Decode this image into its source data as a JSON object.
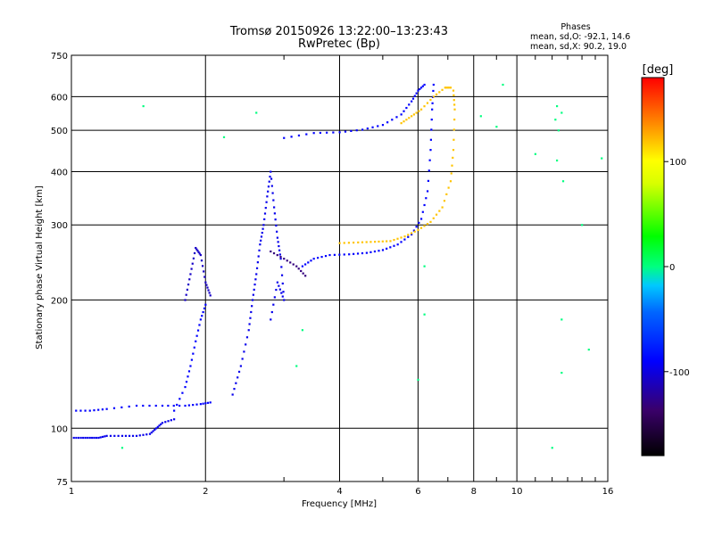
{
  "chart_data": {
    "type": "scatter",
    "title": "Tromsø 20150926 13:22:00–13:23:43",
    "subtitle": "RwPretec (Bp)",
    "xlabel": "Frequency [MHz]",
    "ylabel": "Stationary phase Virtual Height [km]",
    "x_scale": "log",
    "y_scale": "log",
    "xlim": [
      1,
      16
    ],
    "ylim": [
      75,
      750
    ],
    "x_ticks": [
      "1",
      "2",
      "4",
      "6",
      "8",
      "10",
      "16"
    ],
    "y_ticks": [
      "75",
      "100",
      "200",
      "300",
      "400",
      "500",
      "600",
      "750"
    ],
    "grid": true,
    "phase_info": {
      "heading": "Phases",
      "line_o": "mean, sd,O: -92.1, 14.6",
      "line_x": "mean, sd,X:  90.2, 19.0"
    },
    "colorbar": {
      "label": "[deg]",
      "range": [
        -180,
        180
      ],
      "ticks": [
        "100",
        "0",
        "-100"
      ],
      "tick_values": [
        100,
        0,
        -100
      ]
    },
    "series": [
      {
        "trace": "low_e_layer",
        "phase": -105,
        "points": [
          [
            1.0,
            95
          ],
          [
            1.05,
            95
          ],
          [
            1.1,
            95
          ],
          [
            1.15,
            95
          ],
          [
            1.2,
            96
          ],
          [
            1.3,
            96
          ],
          [
            1.4,
            96
          ],
          [
            1.5,
            97
          ],
          [
            1.55,
            100
          ],
          [
            1.6,
            103
          ],
          [
            1.7,
            105
          ]
        ]
      },
      {
        "trace": "upper_e_layer",
        "phase": -100,
        "points": [
          [
            1.0,
            110
          ],
          [
            1.1,
            110
          ],
          [
            1.2,
            111
          ],
          [
            1.4,
            113
          ],
          [
            1.6,
            113
          ],
          [
            1.8,
            113
          ],
          [
            1.95,
            114
          ],
          [
            2.05,
            115
          ]
        ]
      },
      {
        "trace": "es_cloud",
        "phase": -115,
        "points": [
          [
            1.8,
            200
          ],
          [
            1.85,
            230
          ],
          [
            1.9,
            265
          ],
          [
            1.95,
            255
          ],
          [
            2.0,
            220
          ],
          [
            2.05,
            205
          ]
        ]
      },
      {
        "trace": "f1_rise",
        "phase": -100,
        "points": [
          [
            1.7,
            110
          ],
          [
            1.8,
            125
          ],
          [
            1.85,
            140
          ],
          [
            1.9,
            160
          ],
          [
            1.95,
            180
          ],
          [
            2.0,
            195
          ]
        ]
      },
      {
        "trace": "f1_column",
        "phase": -105,
        "points": [
          [
            2.3,
            120
          ],
          [
            2.4,
            140
          ],
          [
            2.5,
            170
          ],
          [
            2.55,
            200
          ],
          [
            2.6,
            230
          ],
          [
            2.65,
            270
          ],
          [
            2.7,
            300
          ],
          [
            2.75,
            350
          ],
          [
            2.8,
            400
          ],
          [
            2.85,
            330
          ],
          [
            2.9,
            280
          ],
          [
            2.95,
            250
          ],
          [
            3.0,
            200
          ],
          [
            2.9,
            220
          ],
          [
            2.8,
            180
          ]
        ]
      },
      {
        "trace": "f1_cusp",
        "phase": -135,
        "points": [
          [
            2.8,
            260
          ],
          [
            3.0,
            250
          ],
          [
            3.2,
            240
          ],
          [
            3.35,
            228
          ]
        ]
      },
      {
        "trace": "f2_o_mode",
        "phase": -100,
        "points": [
          [
            3.3,
            240
          ],
          [
            3.5,
            250
          ],
          [
            3.8,
            255
          ],
          [
            4.2,
            256
          ],
          [
            4.6,
            258
          ],
          [
            5.0,
            262
          ],
          [
            5.4,
            270
          ],
          [
            5.8,
            285
          ],
          [
            6.1,
            310
          ],
          [
            6.3,
            360
          ],
          [
            6.4,
            450
          ],
          [
            6.45,
            560
          ],
          [
            6.5,
            640
          ]
        ]
      },
      {
        "trace": "f2_x_mode",
        "phase": 120,
        "points": [
          [
            4.0,
            272
          ],
          [
            4.4,
            273
          ],
          [
            4.8,
            274
          ],
          [
            5.2,
            275
          ],
          [
            5.6,
            282
          ],
          [
            6.0,
            292
          ],
          [
            6.4,
            305
          ],
          [
            6.8,
            330
          ],
          [
            7.1,
            380
          ],
          [
            7.2,
            450
          ],
          [
            7.25,
            560
          ],
          [
            7.2,
            620
          ]
        ]
      },
      {
        "trace": "high_trace_o",
        "phase": -100,
        "points": [
          [
            3.0,
            480
          ],
          [
            3.5,
            493
          ],
          [
            4.0,
            495
          ],
          [
            4.5,
            502
          ],
          [
            5.0,
            515
          ],
          [
            5.5,
            545
          ],
          [
            5.8,
            585
          ],
          [
            6.0,
            620
          ],
          [
            6.2,
            640
          ]
        ]
      },
      {
        "trace": "high_trace_x",
        "phase": 120,
        "points": [
          [
            5.5,
            520
          ],
          [
            5.8,
            540
          ],
          [
            6.1,
            560
          ],
          [
            6.5,
            600
          ],
          [
            6.9,
            630
          ],
          [
            7.1,
            630
          ]
        ]
      },
      {
        "trace": "scattered",
        "phase": 0,
        "points": [
          [
            1.3,
            90
          ],
          [
            1.5,
            75
          ],
          [
            1.45,
            570
          ],
          [
            2.2,
            482
          ],
          [
            2.6,
            550
          ],
          [
            3.3,
            170
          ],
          [
            3.2,
            140
          ],
          [
            6.2,
            240
          ],
          [
            6.2,
            185
          ],
          [
            6.0,
            130
          ],
          [
            8.3,
            540
          ],
          [
            9.0,
            510
          ],
          [
            9.3,
            640
          ],
          [
            11.0,
            440
          ],
          [
            12.3,
            570
          ],
          [
            12.2,
            530
          ],
          [
            12.4,
            500
          ],
          [
            12.6,
            550
          ],
          [
            12.3,
            425
          ],
          [
            12.7,
            380
          ],
          [
            12.6,
            180
          ],
          [
            12.6,
            135
          ],
          [
            12.0,
            90
          ],
          [
            14.0,
            300
          ],
          [
            14.5,
            153
          ],
          [
            15.5,
            430
          ]
        ]
      }
    ]
  }
}
